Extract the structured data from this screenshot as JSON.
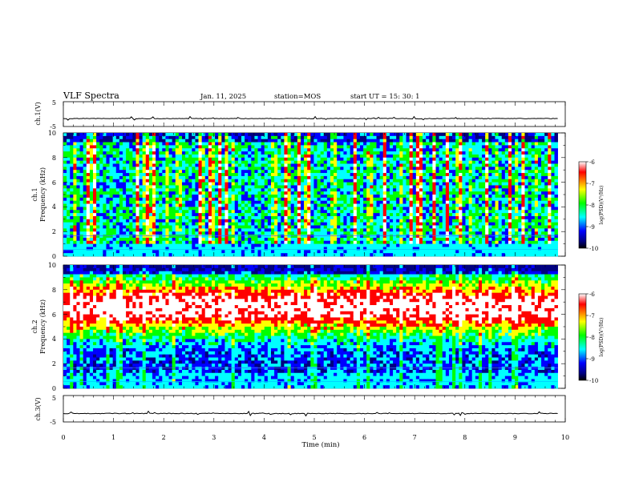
{
  "header": {
    "title": "VLF Spectra",
    "date": "Jan. 11, 2025",
    "station": "station=MOS",
    "start": "start UT =  15: 30: 1"
  },
  "colors": {
    "scale": [
      "#ffffff",
      "#ff0000",
      "#ffff00",
      "#00ff00",
      "#00ffff",
      "#0000ff",
      "#000080",
      "#000000"
    ]
  },
  "chart_data": [
    {
      "type": "line",
      "name": "ch1-waveform",
      "ylabel": "ch.1(V)",
      "ylim": [
        -5,
        5
      ],
      "y_ticks": [
        "5",
        "-5"
      ],
      "xlim": [
        0,
        10
      ],
      "baseline": -1.8
    },
    {
      "type": "heatmap",
      "name": "ch1-spectrogram",
      "ylabel": "ch.1",
      "ylabel2": "Frequency (kHz)",
      "ylim": [
        0,
        10
      ],
      "y_ticks": [
        "0",
        "2",
        "4",
        "6",
        "8",
        "10"
      ],
      "xlim": [
        0,
        9.85
      ],
      "colorbar": {
        "label": "log(PSD)(V²/Hz)",
        "ticks": [
          "-6",
          "-7",
          "-8",
          "-9",
          "-10"
        ],
        "range": [
          -10,
          -6
        ]
      }
    },
    {
      "type": "heatmap",
      "name": "ch2-spectrogram",
      "ylabel": "ch.2",
      "ylabel2": "Frequency (kHz)",
      "ylim": [
        0,
        10
      ],
      "y_ticks": [
        "0",
        "2",
        "4",
        "6",
        "8",
        "10"
      ],
      "xlim": [
        0,
        9.85
      ],
      "colorbar": {
        "label": "log(PSD)(V²/Hz)",
        "ticks": [
          "-6",
          "-7",
          "-8",
          "-9",
          "-10"
        ],
        "range": [
          -10,
          -6
        ]
      }
    },
    {
      "type": "line",
      "name": "ch3-waveform",
      "ylabel": "ch.3(V)",
      "ylim": [
        -5,
        5
      ],
      "y_ticks": [
        "5",
        "-5"
      ],
      "xlim": [
        0,
        10
      ],
      "baseline": -1.8
    }
  ],
  "x_axis": {
    "label": "Time (min)",
    "ticks": [
      "0",
      "1",
      "2",
      "3",
      "4",
      "5",
      "6",
      "7",
      "8",
      "9",
      "10"
    ],
    "range": [
      0,
      10
    ]
  }
}
